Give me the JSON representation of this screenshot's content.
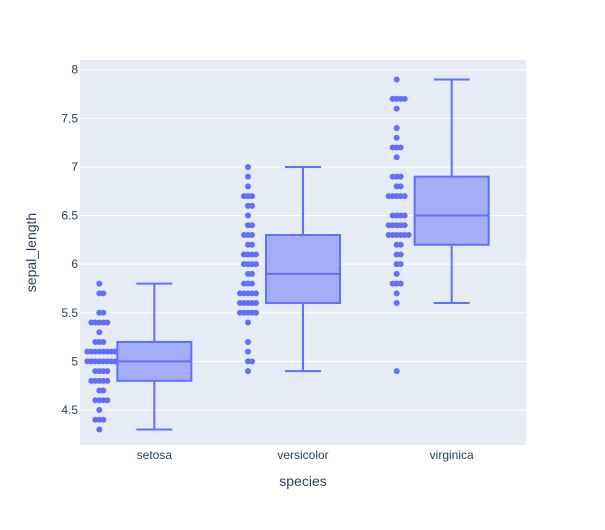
{
  "colors": {
    "plot_background": "#e5ecf6",
    "grid": "#ffffff",
    "marker": "#636efa",
    "box_fill": "rgba(99,110,250,0.5)",
    "text": "#2a3f5f"
  },
  "chart_data": {
    "type": "box",
    "xlabel": "species",
    "ylabel": "sepal_length",
    "categories": [
      "setosa",
      "versicolor",
      "virginica"
    ],
    "ylim": [
      4.14,
      8.1
    ],
    "yticks": [
      4.5,
      5,
      5.5,
      6,
      6.5,
      7,
      7.5,
      8
    ],
    "ytick_labels": [
      "4.5",
      "5",
      "5.5",
      "6",
      "6.5",
      "7",
      "7.5",
      "8"
    ],
    "grid": true,
    "boxpoints": "all",
    "series": [
      {
        "category": "setosa",
        "q1": 4.8,
        "median": 5.0,
        "q3": 5.2,
        "whisker_low": 4.3,
        "whisker_high": 5.8,
        "points": [
          5.1,
          4.9,
          4.7,
          4.6,
          5.0,
          5.4,
          4.6,
          5.0,
          4.4,
          4.9,
          5.4,
          4.8,
          4.8,
          4.3,
          5.8,
          5.7,
          5.4,
          5.1,
          5.7,
          5.1,
          5.4,
          5.1,
          4.6,
          5.1,
          4.8,
          5.0,
          5.0,
          5.2,
          5.2,
          4.7,
          4.8,
          5.4,
          5.2,
          5.5,
          4.9,
          5.0,
          5.5,
          4.9,
          4.4,
          5.1,
          5.0,
          4.5,
          4.4,
          5.0,
          5.1,
          4.8,
          5.1,
          4.6,
          5.3,
          5.0
        ]
      },
      {
        "category": "versicolor",
        "q1": 5.6,
        "median": 5.9,
        "q3": 6.3,
        "whisker_low": 4.9,
        "whisker_high": 7.0,
        "points": [
          7.0,
          6.4,
          6.9,
          5.5,
          6.5,
          5.7,
          6.3,
          4.9,
          6.6,
          5.2,
          5.0,
          5.9,
          6.0,
          6.1,
          5.6,
          6.7,
          5.6,
          5.8,
          6.2,
          5.6,
          5.9,
          6.1,
          6.3,
          6.1,
          6.4,
          6.6,
          6.8,
          6.7,
          6.0,
          5.7,
          5.5,
          5.5,
          5.8,
          6.0,
          5.4,
          6.0,
          6.7,
          6.3,
          5.6,
          5.5,
          5.5,
          6.1,
          5.8,
          5.0,
          5.6,
          5.7,
          5.7,
          6.2,
          5.1,
          5.7
        ]
      },
      {
        "category": "virginica",
        "q1": 6.2,
        "median": 6.5,
        "q3": 6.9,
        "whisker_low": 5.6,
        "whisker_high": 7.9,
        "points": [
          6.3,
          5.8,
          7.1,
          6.3,
          6.5,
          7.6,
          4.9,
          7.3,
          6.7,
          7.2,
          6.5,
          6.4,
          6.8,
          5.7,
          5.8,
          6.4,
          6.5,
          7.7,
          7.7,
          6.0,
          6.9,
          5.6,
          7.7,
          6.3,
          6.7,
          7.2,
          6.2,
          6.1,
          6.4,
          7.2,
          7.4,
          7.9,
          6.4,
          6.3,
          6.1,
          7.7,
          6.3,
          6.4,
          6.0,
          6.9,
          6.7,
          6.9,
          5.8,
          6.8,
          6.7,
          6.7,
          6.3,
          6.5,
          6.2,
          5.9
        ]
      }
    ]
  }
}
